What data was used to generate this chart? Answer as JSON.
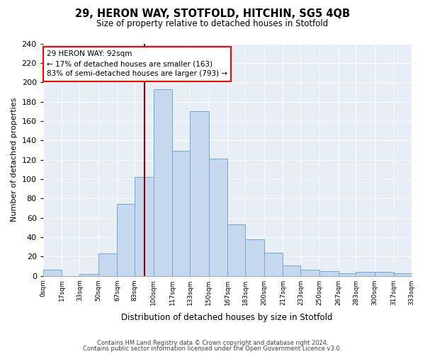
{
  "title": "29, HERON WAY, STOTFOLD, HITCHIN, SG5 4QB",
  "subtitle": "Size of property relative to detached houses in Stotfold",
  "xlabel": "Distribution of detached houses by size in Stotfold",
  "ylabel": "Number of detached properties",
  "bar_color": "#c5d8ed",
  "bar_edge_color": "#6fa8d0",
  "bins": [
    0,
    17,
    33,
    50,
    67,
    83,
    100,
    117,
    133,
    150,
    167,
    183,
    200,
    217,
    233,
    250,
    267,
    283,
    300,
    317,
    333
  ],
  "values": [
    6,
    0,
    2,
    23,
    74,
    102,
    193,
    129,
    170,
    121,
    53,
    38,
    24,
    11,
    6,
    5,
    3,
    4,
    4,
    3
  ],
  "tick_labels": [
    "0sqm",
    "17sqm",
    "33sqm",
    "50sqm",
    "67sqm",
    "83sqm",
    "100sqm",
    "117sqm",
    "133sqm",
    "150sqm",
    "167sqm",
    "183sqm",
    "200sqm",
    "217sqm",
    "233sqm",
    "250sqm",
    "267sqm",
    "283sqm",
    "300sqm",
    "317sqm",
    "333sqm"
  ],
  "property_line_x": 92,
  "annotation_text_line1": "29 HERON WAY: 92sqm",
  "annotation_text_line2": "← 17% of detached houses are smaller (163)",
  "annotation_text_line3": "83% of semi-detached houses are larger (793) →",
  "ylim": [
    0,
    240
  ],
  "yticks": [
    0,
    20,
    40,
    60,
    80,
    100,
    120,
    140,
    160,
    180,
    200,
    220,
    240
  ],
  "footer1": "Contains HM Land Registry data © Crown copyright and database right 2024.",
  "footer2": "Contains public sector information licensed under the Open Government Licence v3.0.",
  "bg_color": "#ffffff",
  "plot_bg_color": "#e8eef5",
  "grid_color": "#ffffff"
}
